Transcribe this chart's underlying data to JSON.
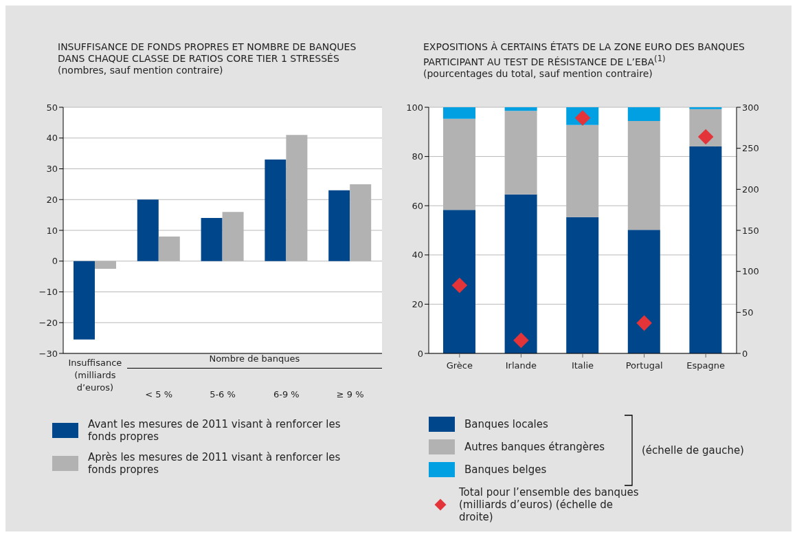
{
  "chart_data": [
    {
      "type": "bar",
      "title": "INSUFFISANCE DE FONDS PROPRES ET NOMBRE DE BANQUES DANS CHAQUE CLASSE DE RATIOS CORE TIER 1 STRESSÉS",
      "subtitle": "(nombres, sauf mention contraire)",
      "categories": [
        "Insuffisance (milliards d’euros)",
        "< 5 %",
        "5-6 %",
        "6-9 %",
        "≥ 9 %"
      ],
      "series": [
        {
          "name": "Avant les mesures de 2011 visant à renforcer les fonds propres",
          "color": "#00468b",
          "values": [
            -25.5,
            20,
            14,
            33,
            23
          ]
        },
        {
          "name": "Après les mesures de 2011 visant à renforcer les fonds propres",
          "color": "#b2b2b2",
          "values": [
            -2.5,
            8,
            16,
            41,
            25
          ]
        }
      ],
      "ylim": [
        -30,
        50
      ],
      "yticks": [
        -30,
        -20,
        -10,
        0,
        10,
        20,
        30,
        40,
        50
      ],
      "grid": "y",
      "legend": "bottom",
      "annotations": [
        "Nombre de banques"
      ]
    },
    {
      "type": "bar",
      "stacked": true,
      "title": "EXPOSITIONS À CERTAINS ÉTATS DE LA ZONE EURO DES BANQUES PARTICIPANT AU TEST DE RÉSISTANCE DE L’EBA$^{(1)}$",
      "subtitle": "(pourcentages du total, sauf mention contraire)",
      "categories": [
        "Grèce",
        "Irlande",
        "Italie",
        "Portugal",
        "Espagne"
      ],
      "series": [
        {
          "name": "Banques locales",
          "color": "#00468b",
          "values": [
            58.3,
            64.6,
            55.4,
            50.2,
            84.1
          ]
        },
        {
          "name": "Autres banques étrangères",
          "color": "#b2b2b2",
          "values": [
            37,
            33.9,
            37.4,
            44.2,
            15.1
          ]
        },
        {
          "name": "Banques belges",
          "color": "#00a0e2",
          "values": [
            4.7,
            1.5,
            7.2,
            5.6,
            0.8
          ]
        },
        {
          "type": "scatter",
          "axis": "y2",
          "name": "Total pour l’ensemble des banques (milliards d’euros) (échelle de droite)",
          "color": "#e3343a",
          "values": [
            83,
            16,
            287,
            37,
            264
          ]
        }
      ],
      "marker": "diamond",
      "ylim": [
        0,
        100
      ],
      "yticks": [
        0,
        20,
        40,
        60,
        80,
        100
      ],
      "y2lim": [
        0,
        300
      ],
      "y2ticks": [
        0,
        50,
        100,
        150,
        200,
        250,
        300
      ],
      "grid": "y",
      "legend": "bottom",
      "annotations": [
        "(échelle de gauche)"
      ]
    }
  ]
}
